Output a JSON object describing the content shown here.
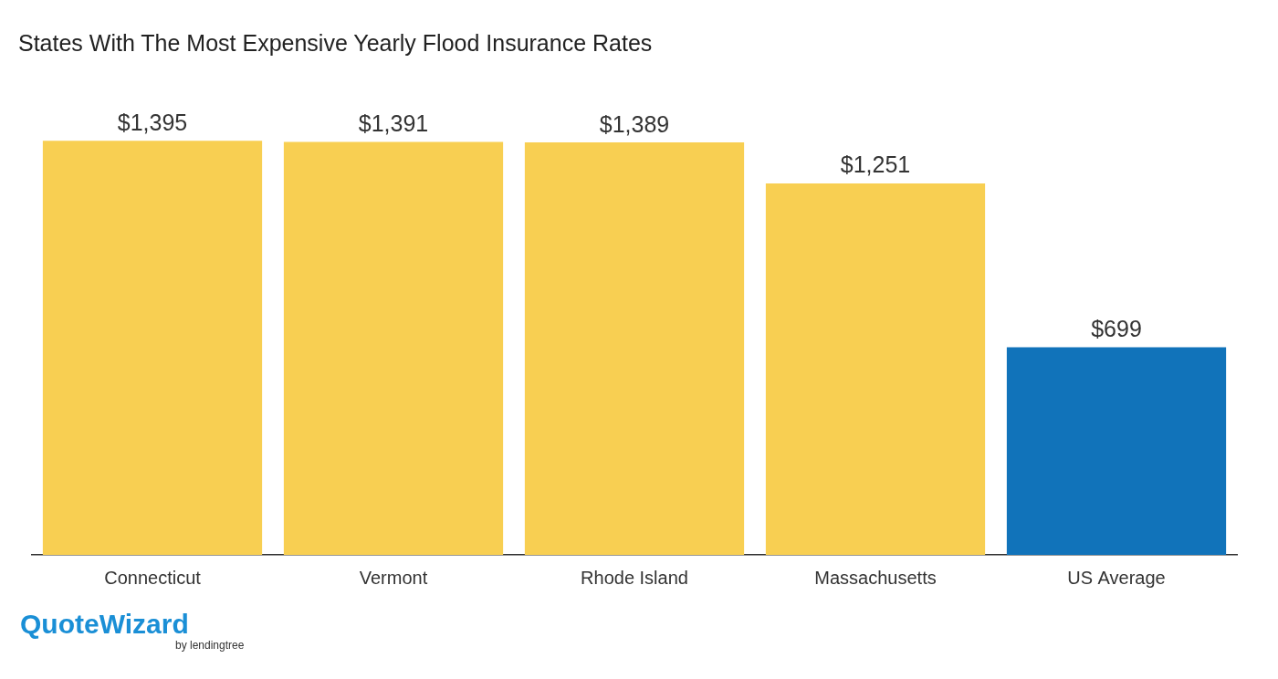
{
  "chart_data": {
    "type": "bar",
    "title": "States With The Most Expensive Yearly Flood Insurance Rates",
    "categories": [
      "Connecticut",
      "Vermont",
      "Rhode Island",
      "Massachusetts",
      "US Average"
    ],
    "values": [
      1395,
      1391,
      1389,
      1251,
      699
    ],
    "value_labels": [
      "$1,395",
      "$1,391",
      "$1,389",
      "$1,251",
      "$699"
    ],
    "colors": [
      "#f8cf52",
      "#f8cf52",
      "#f8cf52",
      "#f8cf52",
      "#1173ba"
    ],
    "ylim": [
      0,
      1500
    ],
    "grid": false,
    "data_labels": true,
    "tick_labels": "x",
    "annotations": [
      "QuoteWizard",
      "by lendingtree"
    ]
  }
}
